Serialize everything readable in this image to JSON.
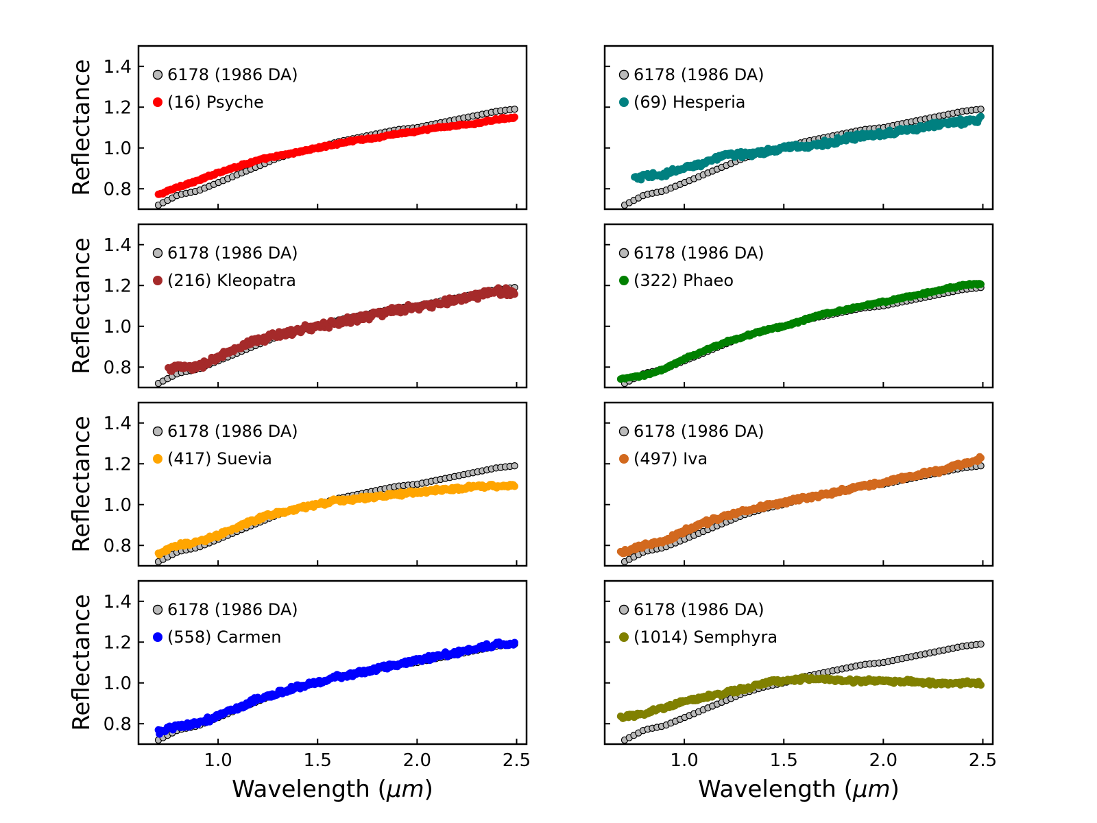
{
  "chart_data": {
    "type": "scatter",
    "layout": "4 rows x 2 columns grid of panels",
    "xlabel": "Wavelength (μm)",
    "xlabel_plain": "Wavelength (",
    "xlabel_unit": "μm",
    "xlabel_close": ")",
    "ylabel": "Reflectance",
    "xlim": [
      0.6,
      2.55
    ],
    "ylim": [
      0.7,
      1.5
    ],
    "xticks": [
      1.0,
      1.5,
      2.0,
      2.5
    ],
    "xtick_labels": [
      "1.0",
      "1.5",
      "2.0",
      "2.5"
    ],
    "yticks": [
      0.8,
      1.0,
      1.2,
      1.4
    ],
    "ytick_labels": [
      "0.8",
      "1.0",
      "1.2",
      "1.4"
    ],
    "reference": {
      "name": "6178 (1986 DA)",
      "color": "#bbbbbb",
      "edge_color": "#000000",
      "x_range": [
        0.7,
        2.49
      ],
      "x": [
        0.7,
        0.8,
        0.9,
        1.0,
        1.1,
        1.2,
        1.3,
        1.4,
        1.5,
        1.6,
        1.7,
        1.8,
        1.9,
        2.0,
        2.1,
        2.2,
        2.3,
        2.4,
        2.49
      ],
      "y": [
        0.72,
        0.77,
        0.79,
        0.83,
        0.87,
        0.91,
        0.95,
        0.98,
        1.0,
        1.03,
        1.05,
        1.07,
        1.09,
        1.1,
        1.12,
        1.14,
        1.16,
        1.18,
        1.19
      ]
    },
    "series": [
      {
        "name": "(16) Psyche",
        "color": "#ff0000",
        "x_start": 0.7,
        "x_end": 2.49,
        "noise": 0.004,
        "x": [
          0.7,
          0.8,
          0.9,
          1.0,
          1.1,
          1.2,
          1.3,
          1.4,
          1.5,
          1.6,
          1.7,
          1.8,
          1.9,
          2.0,
          2.1,
          2.2,
          2.3,
          2.4,
          2.49
        ],
        "y": [
          0.77,
          0.81,
          0.84,
          0.88,
          0.91,
          0.94,
          0.96,
          0.98,
          1.0,
          1.02,
          1.04,
          1.05,
          1.07,
          1.08,
          1.1,
          1.11,
          1.12,
          1.14,
          1.15
        ]
      },
      {
        "name": "(69) Hesperia",
        "color": "#008080",
        "x_start": 0.75,
        "x_end": 2.49,
        "noise": 0.012,
        "x": [
          0.75,
          0.8,
          0.9,
          1.0,
          1.1,
          1.2,
          1.3,
          1.4,
          1.5,
          1.6,
          1.7,
          1.8,
          1.9,
          2.0,
          2.1,
          2.2,
          2.3,
          2.4,
          2.49
        ],
        "y": [
          0.85,
          0.86,
          0.87,
          0.9,
          0.93,
          0.96,
          0.97,
          0.98,
          1.0,
          1.01,
          1.02,
          1.04,
          1.06,
          1.07,
          1.09,
          1.1,
          1.12,
          1.13,
          1.14
        ]
      },
      {
        "name": "(216) Kleopatra",
        "color": "#a52a2a",
        "x_start": 0.75,
        "x_end": 2.49,
        "noise": 0.014,
        "x": [
          0.75,
          0.8,
          0.9,
          1.0,
          1.1,
          1.2,
          1.3,
          1.4,
          1.5,
          1.6,
          1.7,
          1.8,
          1.9,
          2.0,
          2.1,
          2.2,
          2.3,
          2.4,
          2.49
        ],
        "y": [
          0.79,
          0.8,
          0.8,
          0.85,
          0.89,
          0.93,
          0.96,
          0.98,
          1.0,
          1.02,
          1.04,
          1.06,
          1.08,
          1.09,
          1.11,
          1.13,
          1.15,
          1.17,
          1.17
        ]
      },
      {
        "name": "(322) Phaeo",
        "color": "#008000",
        "x_start": 0.68,
        "x_end": 2.49,
        "noise": 0.004,
        "x": [
          0.68,
          0.8,
          0.9,
          1.0,
          1.1,
          1.2,
          1.3,
          1.4,
          1.5,
          1.6,
          1.7,
          1.8,
          1.9,
          2.0,
          2.1,
          2.2,
          2.3,
          2.4,
          2.49
        ],
        "y": [
          0.74,
          0.76,
          0.79,
          0.84,
          0.88,
          0.92,
          0.95,
          0.98,
          1.0,
          1.03,
          1.06,
          1.08,
          1.1,
          1.12,
          1.14,
          1.16,
          1.18,
          1.2,
          1.21
        ]
      },
      {
        "name": "(417) Suevia",
        "color": "#ffa500",
        "x_start": 0.7,
        "x_end": 2.49,
        "noise": 0.008,
        "x": [
          0.7,
          0.8,
          0.9,
          1.0,
          1.1,
          1.2,
          1.3,
          1.4,
          1.5,
          1.6,
          1.7,
          1.8,
          1.9,
          2.0,
          2.1,
          2.2,
          2.3,
          2.4,
          2.49
        ],
        "y": [
          0.76,
          0.8,
          0.82,
          0.85,
          0.89,
          0.93,
          0.96,
          0.98,
          1.0,
          1.02,
          1.03,
          1.04,
          1.05,
          1.06,
          1.07,
          1.08,
          1.09,
          1.09,
          1.09
        ]
      },
      {
        "name": "(497) Iva",
        "color": "#d2691e",
        "x_start": 0.68,
        "x_end": 2.49,
        "noise": 0.009,
        "x": [
          0.68,
          0.8,
          0.9,
          1.0,
          1.1,
          1.2,
          1.3,
          1.4,
          1.5,
          1.6,
          1.7,
          1.8,
          1.9,
          2.0,
          2.1,
          2.2,
          2.3,
          2.4,
          2.49
        ],
        "y": [
          0.76,
          0.8,
          0.82,
          0.87,
          0.91,
          0.94,
          0.97,
          0.99,
          1.01,
          1.03,
          1.05,
          1.07,
          1.09,
          1.11,
          1.13,
          1.15,
          1.17,
          1.2,
          1.23
        ]
      },
      {
        "name": "(558) Carmen",
        "color": "#0000ff",
        "x_start": 0.7,
        "x_end": 2.49,
        "noise": 0.01,
        "x": [
          0.7,
          0.8,
          0.9,
          1.0,
          1.1,
          1.2,
          1.3,
          1.4,
          1.5,
          1.6,
          1.7,
          1.8,
          1.9,
          2.0,
          2.1,
          2.2,
          2.3,
          2.4,
          2.49
        ],
        "y": [
          0.76,
          0.79,
          0.8,
          0.84,
          0.88,
          0.92,
          0.95,
          0.98,
          1.0,
          1.03,
          1.05,
          1.07,
          1.09,
          1.11,
          1.13,
          1.15,
          1.17,
          1.19,
          1.19
        ]
      },
      {
        "name": "(1014) Semphyra",
        "color": "#808000",
        "x_start": 0.68,
        "x_end": 2.49,
        "noise": 0.008,
        "x": [
          0.68,
          0.8,
          0.9,
          1.0,
          1.1,
          1.2,
          1.3,
          1.4,
          1.5,
          1.6,
          1.7,
          1.8,
          1.9,
          2.0,
          2.1,
          2.2,
          2.3,
          2.4,
          2.49
        ],
        "y": [
          0.83,
          0.85,
          0.88,
          0.91,
          0.93,
          0.95,
          0.97,
          1.0,
          1.01,
          1.02,
          1.02,
          1.01,
          1.01,
          1.01,
          1.01,
          1.0,
          1.0,
          1.0,
          1.0
        ]
      }
    ]
  }
}
